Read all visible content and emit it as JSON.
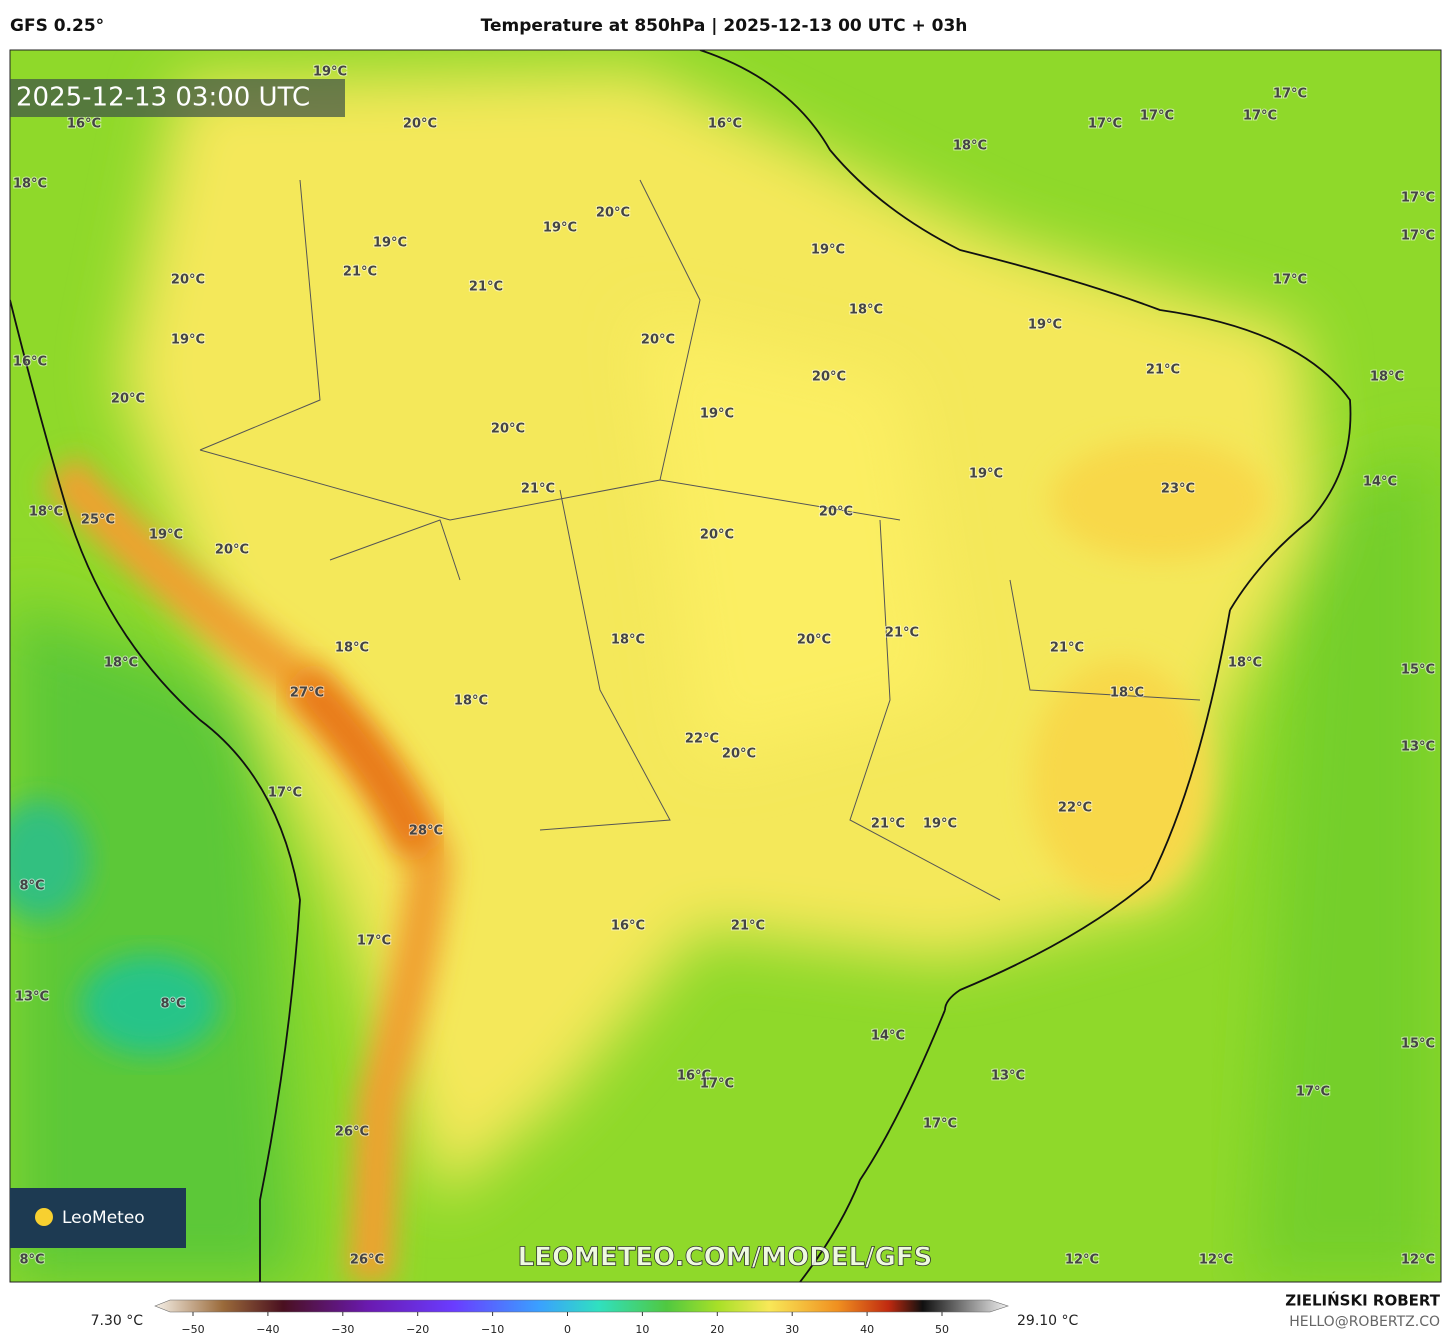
{
  "header": {
    "model": "GFS 0.25°",
    "title": "Temperature at 850hPa | 2025-12-13 00 UTC + 03h"
  },
  "map": {
    "timestamp": "2025-12-13 03:00 UTC",
    "labels": [
      "19°C",
      "16°C",
      "20°C",
      "16°C",
      "18°C",
      "17°C",
      "17°C",
      "17°C",
      "17°C",
      "18°C",
      "20°C",
      "19°C",
      "19°C",
      "21°C",
      "19°C",
      "17°C",
      "17°C",
      "20°C",
      "21°C",
      "17°C",
      "18°C",
      "19°C",
      "19°C",
      "20°C",
      "16°C",
      "21°C",
      "20°C",
      "18°C",
      "20°C",
      "19°C",
      "20°C",
      "19°C",
      "14°C",
      "23°C",
      "21°C",
      "20°C",
      "18°C",
      "25°C",
      "19°C",
      "20°C",
      "20°C",
      "21°C",
      "18°C",
      "20°C",
      "21°C",
      "18°C",
      "18°C",
      "18°C",
      "15°C",
      "27°C",
      "18°C",
      "18°C",
      "22°C",
      "20°C",
      "13°C",
      "17°C",
      "22°C",
      "21°C",
      "19°C",
      "28°C",
      "8°C",
      "16°C",
      "21°C",
      "17°C",
      "13°C",
      "8°C",
      "14°C",
      "15°C",
      "16°C",
      "17°C",
      "13°C",
      "17°C",
      "17°C",
      "26°C",
      "12°C",
      "12°C",
      "12°C",
      "8°C",
      "26°C"
    ],
    "logo": "LeoMeteo",
    "watermark": "LEOMETEO.COM/MODEL/GFS"
  },
  "colorbar": {
    "min_label": "7.30 °C",
    "max_label": "29.10 °C",
    "ticks": [
      {
        "value": -50,
        "label": "−50"
      },
      {
        "value": -40,
        "label": "−40"
      },
      {
        "value": -30,
        "label": "−30"
      },
      {
        "value": -20,
        "label": "−20"
      },
      {
        "value": -10,
        "label": "−10"
      },
      0,
      10,
      20,
      30,
      40,
      50
    ]
  },
  "footer": {
    "author": "ZIELIŃSKI ROBERT",
    "email": "HELLO@ROBERTZ.CO"
  }
}
